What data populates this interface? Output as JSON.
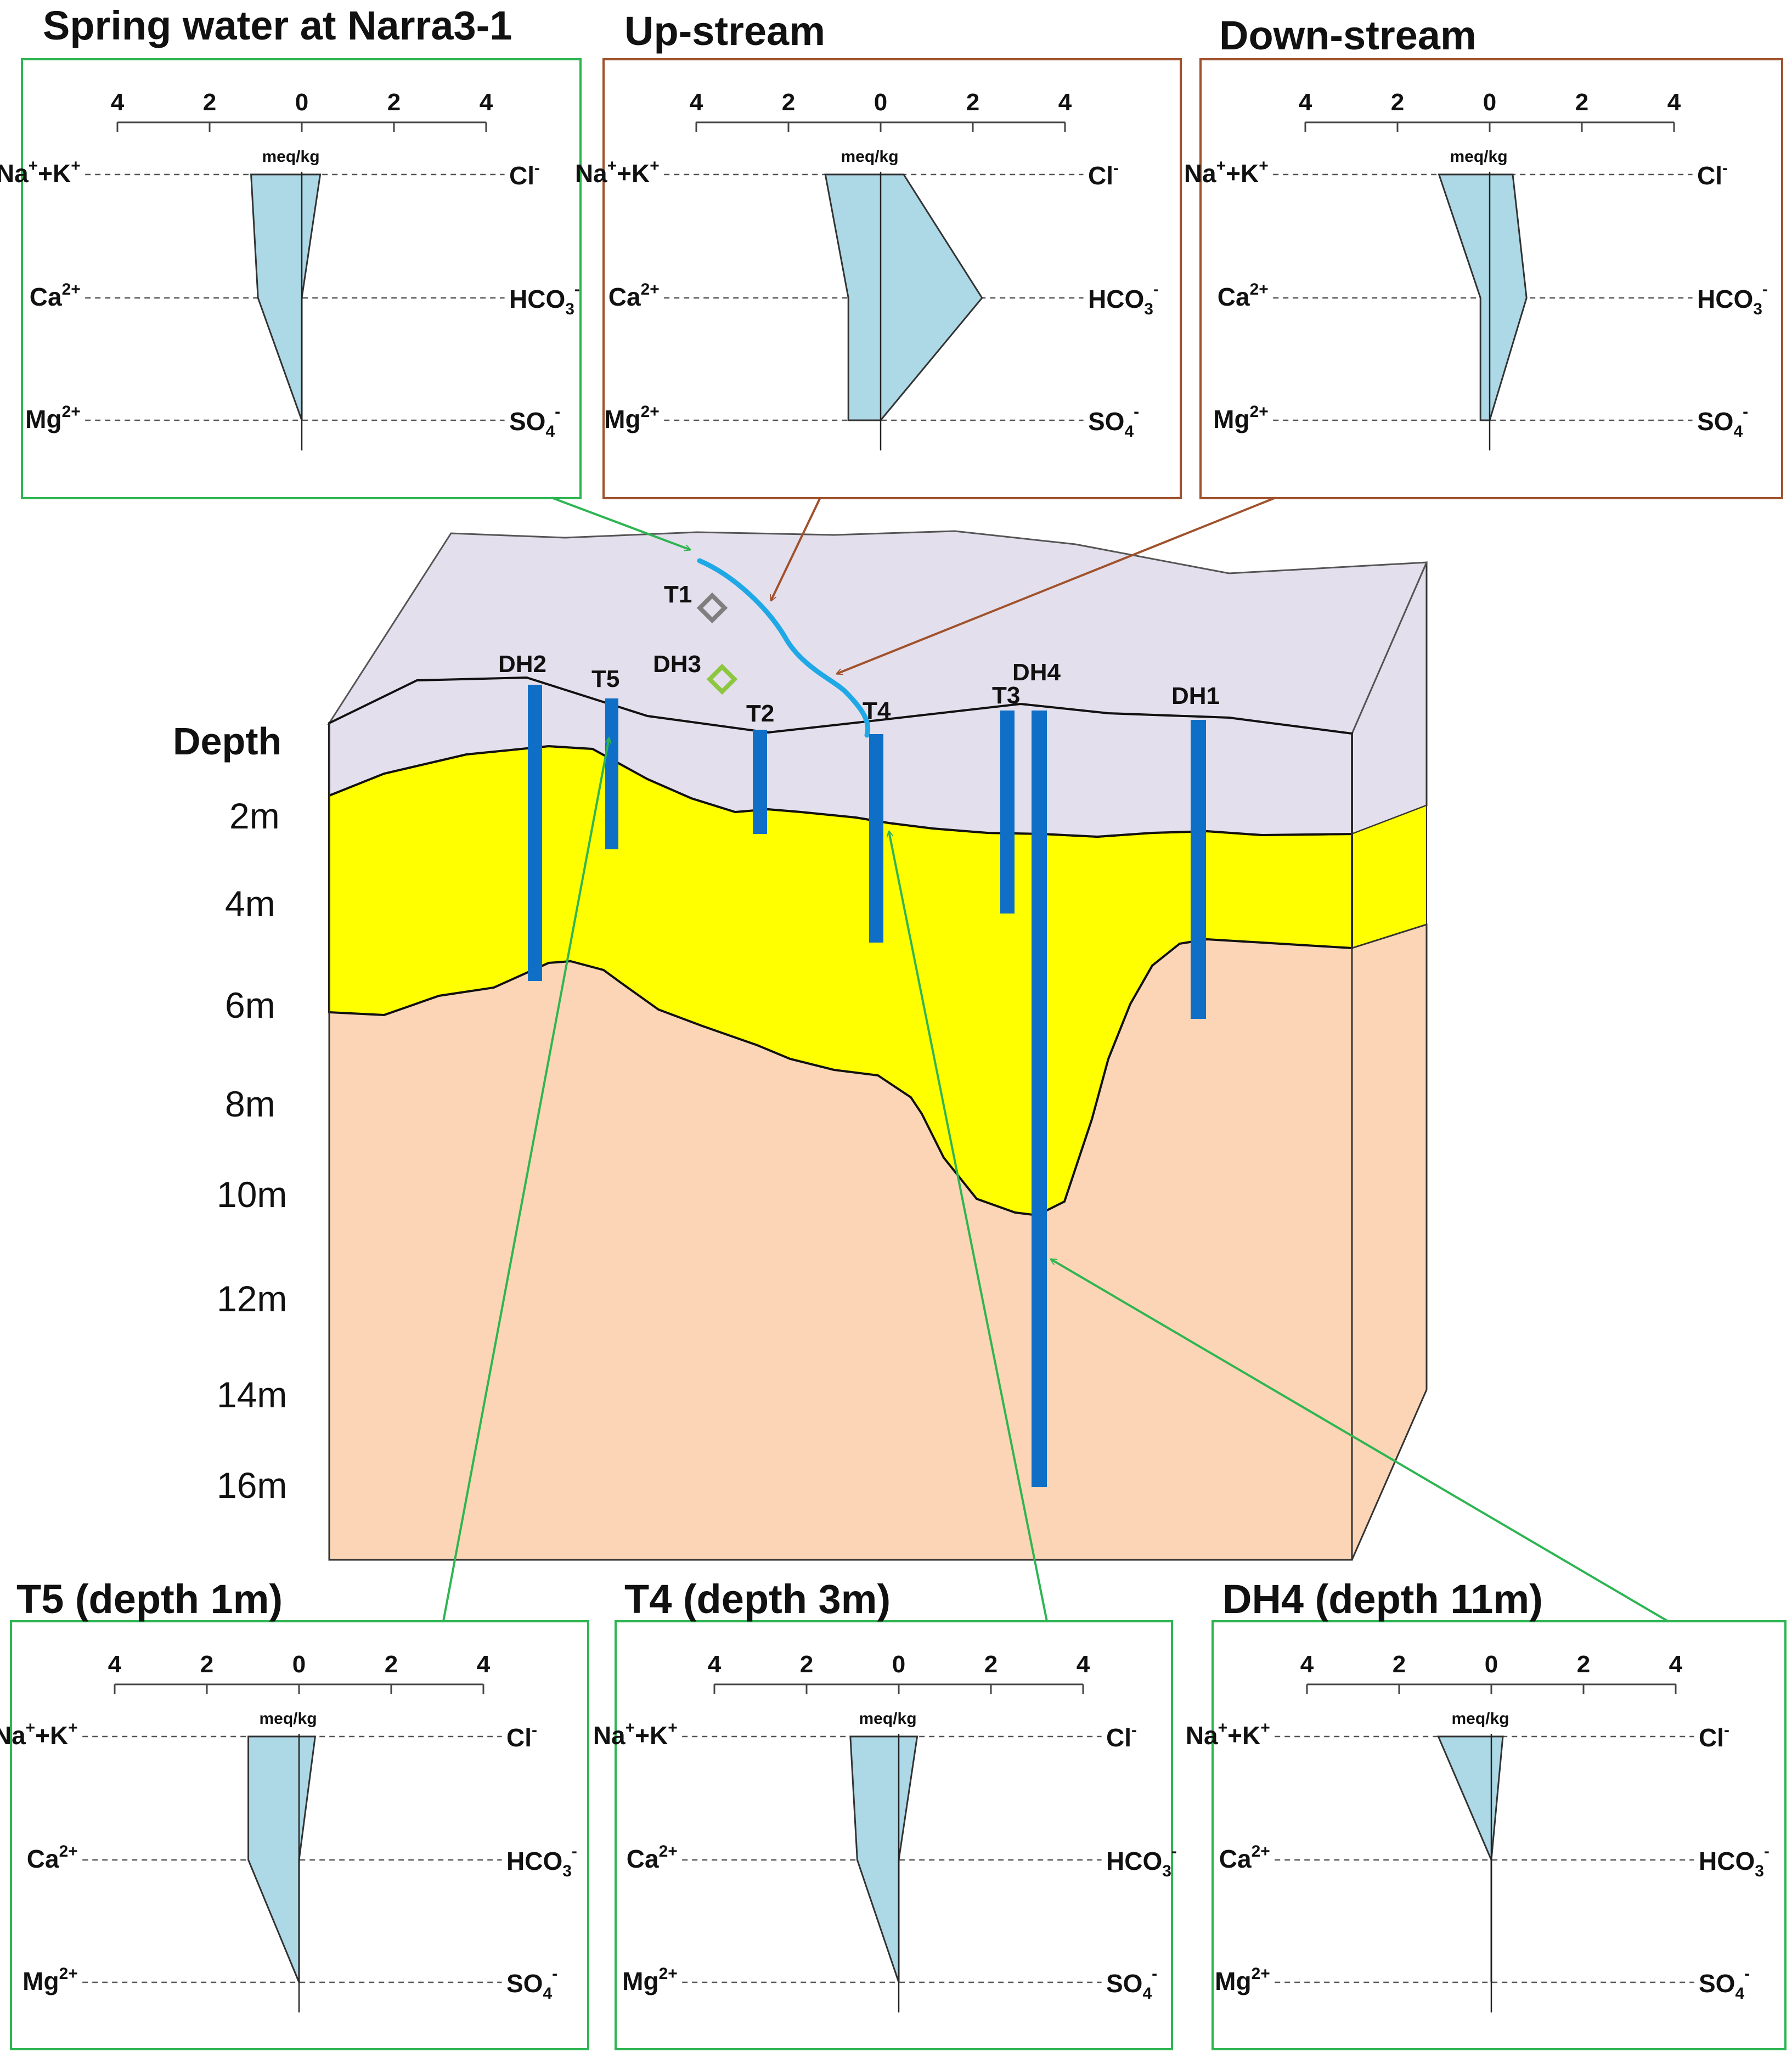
{
  "colors": {
    "green_box": "#2eb552",
    "brown_box": "#a0522d",
    "profile_fill": "#add8e6",
    "topsoil": "#e4dfec",
    "sand": "#ffff00",
    "clay": "#fbd5b5",
    "well": "#0f6fc6",
    "stream": "#1fa8e6",
    "t1_marker": "#7f7f7f",
    "dh3_marker": "#8dc63f"
  },
  "scale": {
    "ticks": [
      "4",
      "2",
      "0",
      "2",
      "4"
    ],
    "unit": "meq/kg"
  },
  "ions": {
    "left": [
      {
        "main": "Na",
        "sup1": "+",
        "mid": "+K",
        "sup2": "+"
      },
      {
        "main": "Ca",
        "sup1": "2+"
      },
      {
        "main": "Mg",
        "sup1": "2+"
      }
    ],
    "right": [
      {
        "main": "Cl",
        "sup1": "-"
      },
      {
        "main": "HCO",
        "sub": "3",
        "sup1": "-"
      },
      {
        "main": "SO",
        "sub": "4",
        "sup1": "-"
      }
    ]
  },
  "chart_data": [
    {
      "type": "stiff",
      "title": "Spring water at Narra3-1",
      "cations": {
        "Na+K": 1.1,
        "Ca": 0.95,
        "Mg": 0.0
      },
      "anions": {
        "Cl": 0.4,
        "HCO3": 0.0,
        "SO4": 0.0
      }
    },
    {
      "type": "stiff",
      "title": "Up-stream",
      "cations": {
        "Na+K": 1.2,
        "Ca": 0.7,
        "Mg": 0.7
      },
      "anions": {
        "Cl": 0.5,
        "HCO3": 2.2,
        "SO4": 0.0
      }
    },
    {
      "type": "stiff",
      "title": "Down-stream",
      "cations": {
        "Na+K": 1.1,
        "Ca": 0.2,
        "Mg": 0.2
      },
      "anions": {
        "Cl": 0.5,
        "HCO3": 0.8,
        "SO4": 0.0
      }
    },
    {
      "type": "stiff",
      "title": "T5 (depth 1m)",
      "cations": {
        "Na+K": 1.1,
        "Ca": 1.1,
        "Mg": 0.0
      },
      "anions": {
        "Cl": 0.35,
        "HCO3": 0.0,
        "SO4": 0.0
      }
    },
    {
      "type": "stiff",
      "title": "T4 (depth 3m)",
      "cations": {
        "Na+K": 1.05,
        "Ca": 0.9,
        "Mg": 0.0
      },
      "anions": {
        "Cl": 0.4,
        "HCO3": 0.0,
        "SO4": 0.0
      }
    },
    {
      "type": "stiff",
      "title": "DH4 (depth 11m)",
      "cations": {
        "Na+K": 1.15,
        "Ca": 0.0,
        "Mg": 0.0
      },
      "anions": {
        "Cl": 0.25,
        "HCO3": 0.0,
        "SO4": 0.0
      }
    }
  ],
  "cross_section": {
    "depth_title": "Depth",
    "depth_ticks": [
      "2m",
      "4m",
      "6m",
      "8m",
      "10m",
      "12m",
      "14m",
      "16m"
    ],
    "wells": [
      {
        "label": "DH2"
      },
      {
        "label": "T5"
      },
      {
        "label": "DH3"
      },
      {
        "label": "T2"
      },
      {
        "label": "T4"
      },
      {
        "label": "T3"
      },
      {
        "label": "DH4"
      },
      {
        "label": "DH1"
      },
      {
        "label": "T1"
      }
    ]
  }
}
